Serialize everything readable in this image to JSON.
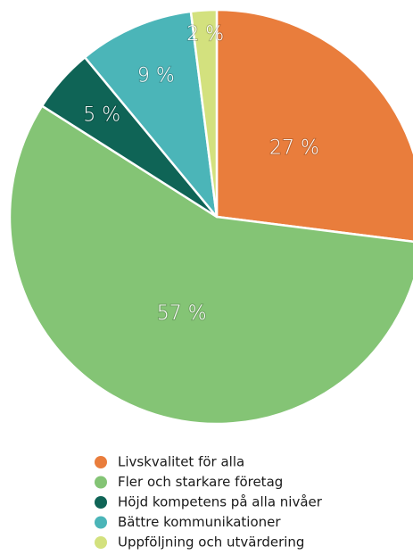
{
  "chart_data": {
    "type": "pie",
    "categories": [
      "Livskvalitet för alla",
      "Fler och starkare företag",
      "Höjd kompetens på alla nivåer",
      "Bättre kommunikationer",
      "Uppföljning och utvärdering"
    ],
    "values": [
      27,
      57,
      5,
      9,
      2
    ],
    "value_labels": [
      "27 %",
      "57 %",
      "5 %",
      "9 %",
      "2 %"
    ],
    "colors": [
      "#e97d3c",
      "#84c475",
      "#0f6456",
      "#4bb5b8",
      "#d3e17e"
    ]
  }
}
